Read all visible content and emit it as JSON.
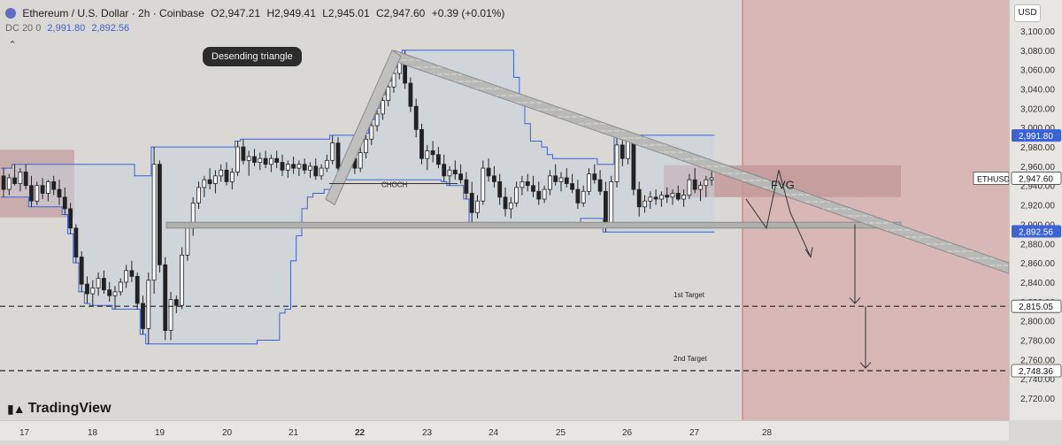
{
  "header": {
    "symbol": "Ethereum / U.S. Dollar · 2h · Coinbase",
    "open": "O2,947.21",
    "high": "H2,949.41",
    "low": "L2,945.01",
    "close": "C2,947.60",
    "change": "+0.39 (+0.01%)"
  },
  "indicator": {
    "name": "DC 20 0",
    "upper": "2,991.80",
    "lower": "2,892.56"
  },
  "currency_button": "USD",
  "brand": "TradingView",
  "chart_data": {
    "type": "candlestick",
    "symbol": "ETHUSD",
    "timeframe": "2h",
    "y_range": [
      2720,
      3110
    ],
    "y_ticks": [
      "3,100.00",
      "3,080.00",
      "3,060.00",
      "3,040.00",
      "3,020.00",
      "3,000.00",
      "2,980.00",
      "2,960.00",
      "2,940.00",
      "2,920.00",
      "2,900.00",
      "2,880.00",
      "2,860.00",
      "2,840.00",
      "2,820.00",
      "2,800.00",
      "2,780.00",
      "2,760.00",
      "2,740.00",
      "2,720.00"
    ],
    "x_ticks": [
      {
        "label": "17",
        "bold": false
      },
      {
        "label": "18",
        "bold": false
      },
      {
        "label": "19",
        "bold": false
      },
      {
        "label": "20",
        "bold": false
      },
      {
        "label": "21",
        "bold": false
      },
      {
        "label": "22",
        "bold": true
      },
      {
        "label": "23",
        "bold": false
      },
      {
        "label": "24",
        "bold": false
      },
      {
        "label": "25",
        "bold": false
      },
      {
        "label": "26",
        "bold": false
      },
      {
        "label": "27",
        "bold": false
      },
      {
        "label": "28",
        "bold": false
      }
    ],
    "price_labels": [
      {
        "value": 2991.8,
        "text": "2,991.80",
        "style": "blue"
      },
      {
        "value": 2947.6,
        "text": "2,947.60",
        "style": "white",
        "prefix": "ETHUSD"
      },
      {
        "value": 2892.56,
        "text": "2,892.56",
        "style": "blue"
      },
      {
        "value": 2815.05,
        "text": "2,815.05",
        "style": "white"
      },
      {
        "value": 2748.36,
        "text": "2,748.36",
        "style": "white"
      }
    ],
    "annotations": {
      "pattern_label": "Desending triangle",
      "choch": "CHOCH",
      "fvg": "FVG",
      "target1": "1st Target",
      "target2": "2nd Target"
    },
    "candles": [
      [
        2950,
        2958,
        2928,
        2936
      ],
      [
        2936,
        2952,
        2930,
        2948
      ],
      [
        2948,
        2962,
        2940,
        2942
      ],
      [
        2942,
        2958,
        2934,
        2954
      ],
      [
        2954,
        2962,
        2936,
        2940
      ],
      [
        2940,
        2950,
        2918,
        2924
      ],
      [
        2924,
        2944,
        2920,
        2940
      ],
      [
        2940,
        2948,
        2926,
        2932
      ],
      [
        2932,
        2946,
        2924,
        2944
      ],
      [
        2944,
        2950,
        2930,
        2936
      ],
      [
        2936,
        2946,
        2920,
        2928
      ],
      [
        2928,
        2938,
        2910,
        2916
      ],
      [
        2916,
        2922,
        2890,
        2896
      ],
      [
        2896,
        2900,
        2860,
        2866
      ],
      [
        2866,
        2872,
        2830,
        2838
      ],
      [
        2838,
        2846,
        2818,
        2828
      ],
      [
        2828,
        2842,
        2816,
        2834
      ],
      [
        2834,
        2850,
        2826,
        2844
      ],
      [
        2844,
        2852,
        2828,
        2832
      ],
      [
        2832,
        2840,
        2820,
        2826
      ],
      [
        2826,
        2836,
        2812,
        2830
      ],
      [
        2830,
        2844,
        2826,
        2840
      ],
      [
        2840,
        2858,
        2834,
        2852
      ],
      [
        2852,
        2862,
        2840,
        2846
      ],
      [
        2846,
        2850,
        2812,
        2818
      ],
      [
        2818,
        2826,
        2786,
        2792
      ],
      [
        2792,
        2850,
        2776,
        2842
      ],
      [
        2842,
        2980,
        2828,
        2962
      ],
      [
        2962,
        2966,
        2850,
        2858
      ],
      [
        2858,
        2866,
        2780,
        2790
      ],
      [
        2790,
        2830,
        2780,
        2822
      ],
      [
        2822,
        2826,
        2808,
        2816
      ],
      [
        2816,
        2876,
        2812,
        2868
      ],
      [
        2868,
        2902,
        2862,
        2896
      ],
      [
        2896,
        2928,
        2888,
        2922
      ],
      [
        2922,
        2944,
        2916,
        2938
      ],
      [
        2938,
        2950,
        2928,
        2946
      ],
      [
        2946,
        2958,
        2936,
        2942
      ],
      [
        2942,
        2956,
        2932,
        2950
      ],
      [
        2950,
        2962,
        2944,
        2956
      ],
      [
        2956,
        2964,
        2940,
        2944
      ],
      [
        2944,
        2958,
        2936,
        2954
      ],
      [
        2954,
        2986,
        2950,
        2980
      ],
      [
        2980,
        2988,
        2962,
        2966
      ],
      [
        2966,
        2976,
        2950,
        2970
      ],
      [
        2970,
        2978,
        2960,
        2964
      ],
      [
        2964,
        2974,
        2956,
        2968
      ],
      [
        2968,
        2976,
        2958,
        2962
      ],
      [
        2962,
        2972,
        2954,
        2968
      ],
      [
        2968,
        2976,
        2958,
        2964
      ],
      [
        2964,
        2972,
        2950,
        2956
      ],
      [
        2956,
        2966,
        2948,
        2962
      ],
      [
        2962,
        2970,
        2952,
        2958
      ],
      [
        2958,
        2966,
        2950,
        2962
      ],
      [
        2962,
        2968,
        2952,
        2956
      ],
      [
        2956,
        2964,
        2948,
        2960
      ],
      [
        2960,
        2968,
        2946,
        2950
      ],
      [
        2950,
        2962,
        2946,
        2958
      ],
      [
        2958,
        2972,
        2954,
        2966
      ],
      [
        2966,
        2992,
        2962,
        2984
      ],
      [
        2984,
        2990,
        2952,
        2958
      ],
      [
        2958,
        2966,
        2946,
        2962
      ],
      [
        2962,
        2972,
        2956,
        2968
      ],
      [
        2968,
        2974,
        2952,
        2958
      ],
      [
        2958,
        2980,
        2954,
        2974
      ],
      [
        2974,
        2994,
        2968,
        2988
      ],
      [
        2988,
        3008,
        2982,
        3002
      ],
      [
        3002,
        3020,
        2996,
        3014
      ],
      [
        3014,
        3034,
        3008,
        3028
      ],
      [
        3028,
        3048,
        3022,
        3042
      ],
      [
        3042,
        3062,
        3036,
        3056
      ],
      [
        3056,
        3076,
        3050,
        3068
      ],
      [
        3068,
        3080,
        3040,
        3046
      ],
      [
        3046,
        3052,
        3016,
        3022
      ],
      [
        3022,
        3030,
        2990,
        2998
      ],
      [
        2998,
        3004,
        2962,
        2968
      ],
      [
        2968,
        2982,
        2956,
        2976
      ],
      [
        2976,
        2986,
        2964,
        2972
      ],
      [
        2972,
        2980,
        2958,
        2962
      ],
      [
        2962,
        2972,
        2944,
        2950
      ],
      [
        2950,
        2960,
        2940,
        2956
      ],
      [
        2956,
        2966,
        2946,
        2952
      ],
      [
        2952,
        2962,
        2942,
        2946
      ],
      [
        2946,
        2954,
        2926,
        2932
      ],
      [
        2932,
        2944,
        2900,
        2912
      ],
      [
        2912,
        2930,
        2906,
        2924
      ],
      [
        2924,
        2966,
        2920,
        2958
      ],
      [
        2958,
        2968,
        2944,
        2950
      ],
      [
        2950,
        2960,
        2938,
        2944
      ],
      [
        2944,
        2952,
        2920,
        2928
      ],
      [
        2928,
        2938,
        2908,
        2916
      ],
      [
        2916,
        2928,
        2906,
        2922
      ],
      [
        2922,
        2944,
        2918,
        2938
      ],
      [
        2938,
        2950,
        2930,
        2944
      ],
      [
        2944,
        2952,
        2934,
        2940
      ],
      [
        2940,
        2950,
        2928,
        2934
      ],
      [
        2934,
        2944,
        2920,
        2926
      ],
      [
        2926,
        2940,
        2922,
        2936
      ],
      [
        2936,
        2956,
        2930,
        2950
      ],
      [
        2950,
        2962,
        2940,
        2944
      ],
      [
        2944,
        2954,
        2934,
        2948
      ],
      [
        2948,
        2958,
        2938,
        2942
      ],
      [
        2942,
        2952,
        2932,
        2936
      ],
      [
        2936,
        2946,
        2916,
        2922
      ],
      [
        2922,
        2940,
        2918,
        2934
      ],
      [
        2934,
        2958,
        2930,
        2952
      ],
      [
        2952,
        2962,
        2942,
        2946
      ],
      [
        2946,
        2956,
        2930,
        2934
      ],
      [
        2934,
        2944,
        2892,
        2900
      ],
      [
        2900,
        2950,
        2896,
        2944
      ],
      [
        2944,
        2990,
        2938,
        2982
      ],
      [
        2982,
        2992,
        2960,
        2968
      ],
      [
        2968,
        2990,
        2962,
        2986
      ],
      [
        2986,
        2988,
        2930,
        2936
      ],
      [
        2936,
        2944,
        2908,
        2918
      ],
      [
        2918,
        2930,
        2912,
        2924
      ],
      [
        2924,
        2934,
        2916,
        2928
      ],
      [
        2928,
        2936,
        2920,
        2926
      ],
      [
        2926,
        2934,
        2918,
        2930
      ],
      [
        2930,
        2938,
        2922,
        2928
      ],
      [
        2928,
        2936,
        2920,
        2932
      ],
      [
        2932,
        2940,
        2924,
        2926
      ],
      [
        2926,
        2936,
        2918,
        2930
      ],
      [
        2930,
        2952,
        2926,
        2946
      ],
      [
        2946,
        2958,
        2932,
        2936
      ],
      [
        2936,
        2944,
        2924,
        2940
      ],
      [
        2940,
        2950,
        2928,
        2946
      ],
      [
        2946,
        2962,
        2940,
        2948
      ]
    ]
  }
}
